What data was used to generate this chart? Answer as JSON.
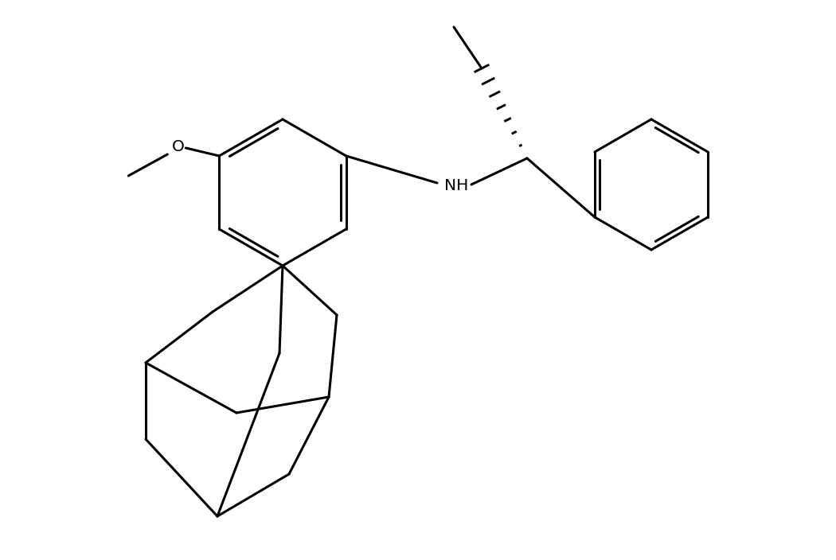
{
  "bg_color": "#ffffff",
  "line_color": "#000000",
  "line_width": 2.2,
  "fig_width": 10.5,
  "fig_height": 7.04,
  "dpi": 100
}
